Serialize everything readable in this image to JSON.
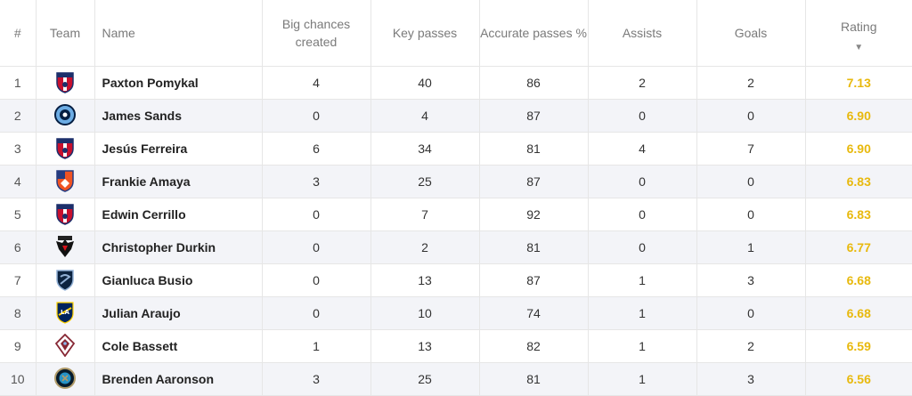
{
  "headers": {
    "rank": "#",
    "team": "Team",
    "name": "Name",
    "big_chances": "Big chances created",
    "key_passes": "Key passes",
    "accurate_passes": "Accurate passes %",
    "assists": "Assists",
    "goals": "Goals",
    "rating": "Rating",
    "sort_indicator": "▼"
  },
  "rows": [
    {
      "rank": "1",
      "team_icon": "fc-dallas-crest",
      "name": "Paxton Pomykal",
      "big_chances": "4",
      "key_passes": "40",
      "accurate_passes": "86",
      "assists": "2",
      "goals": "2",
      "rating": "7.13"
    },
    {
      "rank": "2",
      "team_icon": "nycfc-crest",
      "name": "James Sands",
      "big_chances": "0",
      "key_passes": "4",
      "accurate_passes": "87",
      "assists": "0",
      "goals": "0",
      "rating": "6.90"
    },
    {
      "rank": "3",
      "team_icon": "fc-dallas-crest",
      "name": "Jesús Ferreira",
      "big_chances": "6",
      "key_passes": "34",
      "accurate_passes": "81",
      "assists": "4",
      "goals": "7",
      "rating": "6.90"
    },
    {
      "rank": "4",
      "team_icon": "fc-cincinnati-crest",
      "name": "Frankie Amaya",
      "big_chances": "3",
      "key_passes": "25",
      "accurate_passes": "87",
      "assists": "0",
      "goals": "0",
      "rating": "6.83"
    },
    {
      "rank": "5",
      "team_icon": "fc-dallas-crest",
      "name": "Edwin Cerrillo",
      "big_chances": "0",
      "key_passes": "7",
      "accurate_passes": "92",
      "assists": "0",
      "goals": "0",
      "rating": "6.83"
    },
    {
      "rank": "6",
      "team_icon": "dc-united-crest",
      "name": "Christopher Durkin",
      "big_chances": "0",
      "key_passes": "2",
      "accurate_passes": "81",
      "assists": "0",
      "goals": "1",
      "rating": "6.77"
    },
    {
      "rank": "7",
      "team_icon": "sporting-kc-crest",
      "name": "Gianluca Busio",
      "big_chances": "0",
      "key_passes": "13",
      "accurate_passes": "87",
      "assists": "1",
      "goals": "3",
      "rating": "6.68"
    },
    {
      "rank": "8",
      "team_icon": "la-galaxy-crest",
      "name": "Julian Araujo",
      "big_chances": "0",
      "key_passes": "10",
      "accurate_passes": "74",
      "assists": "1",
      "goals": "0",
      "rating": "6.68"
    },
    {
      "rank": "9",
      "team_icon": "colorado-rapids-crest",
      "name": "Cole Bassett",
      "big_chances": "1",
      "key_passes": "13",
      "accurate_passes": "82",
      "assists": "1",
      "goals": "2",
      "rating": "6.59"
    },
    {
      "rank": "10",
      "team_icon": "philadelphia-union-crest",
      "name": "Brenden Aaronson",
      "big_chances": "3",
      "key_passes": "25",
      "accurate_passes": "81",
      "assists": "1",
      "goals": "3",
      "rating": "6.56"
    }
  ],
  "colors": {
    "rating": "#e8b90e",
    "header_text": "#7a7a7a",
    "row_alt": "#f3f4f8",
    "grid": "#e6e6e6"
  }
}
